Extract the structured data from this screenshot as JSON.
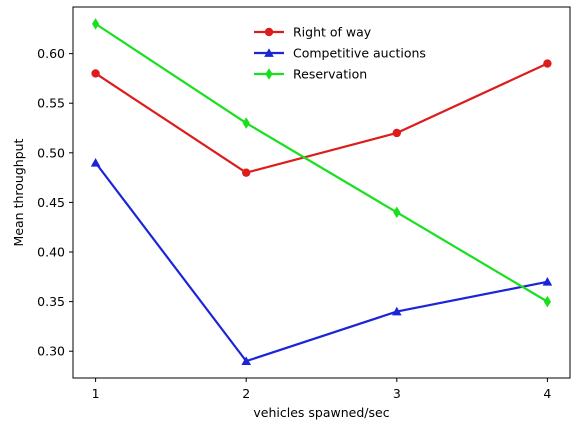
{
  "chart_data": {
    "type": "line",
    "x": [
      1,
      2,
      3,
      4
    ],
    "xlabel": "vehicles spawned/sec",
    "ylabel": "Mean throughput",
    "xlim": [
      0.85,
      4.15
    ],
    "ylim": [
      0.273,
      0.647
    ],
    "xticks": [
      1,
      2,
      3,
      4
    ],
    "yticks": [
      0.3,
      0.35,
      0.4,
      0.45,
      0.5,
      0.55,
      0.6
    ],
    "grid": false,
    "legend": "top-center",
    "series": [
      {
        "name": "Right of way",
        "values": [
          0.58,
          0.48,
          0.52,
          0.59
        ],
        "color": "#dd1c1c",
        "marker": "circle"
      },
      {
        "name": "Competitive auctions",
        "values": [
          0.49,
          0.29,
          0.34,
          0.37
        ],
        "color": "#1c24d9",
        "marker": "triangle"
      },
      {
        "name": "Reservation",
        "values": [
          0.63,
          0.53,
          0.44,
          0.35
        ],
        "color": "#19e01e",
        "marker": "diamond"
      }
    ]
  }
}
